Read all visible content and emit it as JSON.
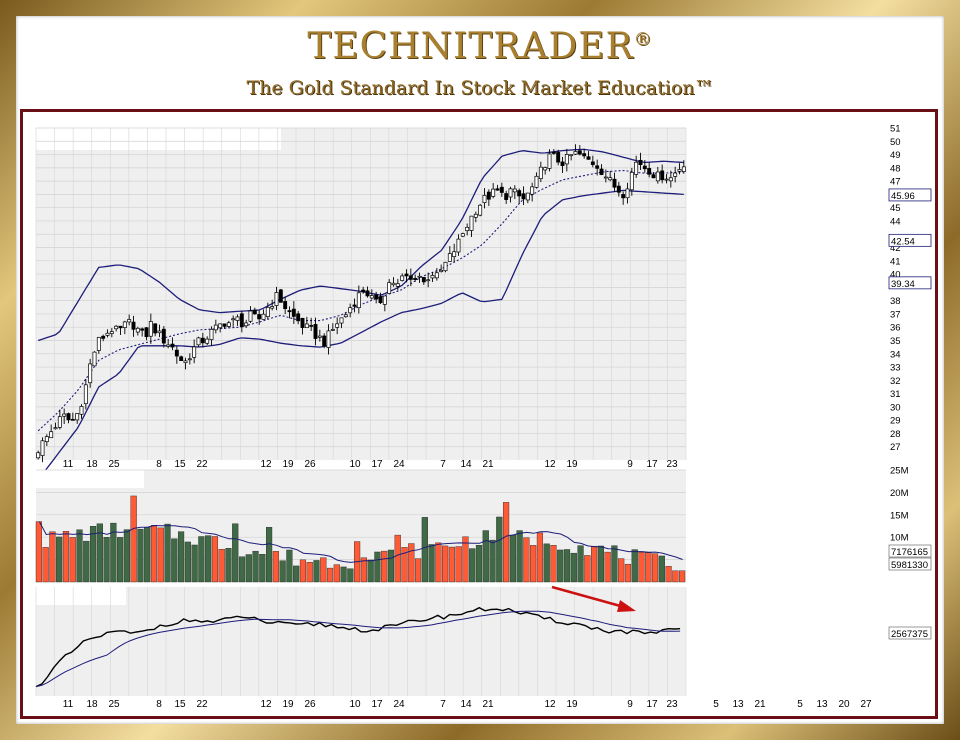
{
  "header": {
    "title": "TECHNITRADER",
    "registered_mark": "®",
    "tagline": "The Gold Standard In Stock Market Education™"
  },
  "colors": {
    "frame_gold": "#c9a85a",
    "chart_border": "#6b0f16",
    "bollinger": "#1d1d7a",
    "volume_up": "#3f6a45",
    "volume_down": "#ff5a36",
    "arrow": "#cc1111",
    "plot_bg": "#efefef"
  },
  "chart_data": [
    {
      "type": "candlestick",
      "overlays": [
        "bollinger_upper",
        "bollinger_lower",
        "moving_average_dotted"
      ],
      "y_ticks": [
        "51",
        "50",
        "49",
        "48",
        "47",
        "45",
        "44",
        "42",
        "41",
        "40",
        "38",
        "37",
        "36",
        "35",
        "34",
        "33",
        "32",
        "31",
        "30",
        "29",
        "28",
        "27"
      ],
      "price_labels": [
        "45.96",
        "42.54",
        "39.34"
      ],
      "ylim": [
        26,
        51
      ],
      "close_path": [
        26.8,
        27.5,
        28.2,
        28.9,
        29.3,
        28.8,
        29.6,
        31.2,
        33.6,
        34.9,
        35.4,
        35.9,
        35.6,
        36.1,
        36.4,
        35.8,
        35.2,
        36.3,
        35.5,
        35.0,
        34.6,
        33.8,
        33.3,
        34.1,
        34.8,
        35.1,
        35.6,
        36.0,
        36.4,
        36.3,
        36.6,
        36.2,
        36.9,
        36.5,
        37.2,
        37.8,
        38.4,
        37.6,
        36.9,
        36.5,
        36.0,
        35.7,
        35.3,
        34.9,
        35.6,
        36.4,
        36.8,
        37.6,
        38.3,
        38.9,
        38.2,
        37.6,
        38.6,
        39.6,
        39.1,
        39.9,
        39.5,
        40.1,
        39.3,
        40.2,
        39.7,
        40.6,
        41.4,
        42.2,
        43.3,
        44.2,
        45.1,
        45.6,
        46.0,
        46.2,
        45.8,
        46.3,
        45.9,
        45.6,
        46.3,
        47.1,
        48.3,
        48.9,
        48.6,
        48.4,
        48.9,
        49.1,
        48.7,
        48.5,
        48.2,
        47.6,
        46.9,
        46.4,
        46.1,
        47.4,
        48.6,
        48.1,
        47.8,
        47.3,
        47.5,
        47.2,
        47.8,
        48.4
      ],
      "upper_band_path": [
        35,
        35.5,
        38,
        40.5,
        40.7,
        40.4,
        39.4,
        38.1,
        37.3,
        37.1,
        37.2,
        37.3,
        38.1,
        38.8,
        39.1,
        38.9,
        38.7,
        38.4,
        39.1,
        40.6,
        41.8,
        44.1,
        47.2,
        48.9,
        49.3,
        49.1,
        49.3,
        49.4,
        49.2,
        48.8,
        48.4,
        48.5,
        48.4
      ],
      "lower_band_path": [
        24.5,
        26.5,
        28.5,
        31.5,
        32.5,
        34.6,
        34.6,
        34.6,
        34.5,
        34.7,
        35.2,
        35.1,
        34.8,
        34.6,
        34.5,
        34.8,
        35.6,
        36.4,
        37.1,
        37.4,
        37.8,
        38.6,
        37.9,
        38.1,
        41.5,
        44.4,
        45.6,
        45.9,
        46.1,
        46.3,
        46.2,
        46.1,
        46.0
      ],
      "moving_average_path": [
        28.2,
        29.6,
        31.3,
        33.5,
        34.3,
        34.7,
        35.1,
        35.5,
        35.8,
        35.9,
        36.0,
        36.4,
        36.9,
        36.5,
        36.5,
        36.9,
        37.7,
        38.3,
        38.8,
        39.8,
        40.4,
        41.2,
        42.2,
        43.8,
        45.6,
        46.4,
        47.1,
        47.4,
        47.7,
        47.8,
        47.6,
        47.6,
        47.7
      ],
      "x_ticks_top": [
        "11",
        "18",
        "25",
        "8",
        "15",
        "22",
        "12",
        "19",
        "26",
        "10",
        "17",
        "24",
        "7",
        "14",
        "21",
        "12",
        "19",
        "9",
        "17",
        "23"
      ]
    },
    {
      "type": "bar",
      "name": "volume",
      "y_ticks": [
        "25M",
        "20M",
        "15M",
        "10M"
      ],
      "value_labels": [
        "7176165",
        "5981330"
      ],
      "ylim": [
        0,
        25
      ]
    },
    {
      "type": "line",
      "name": "indicator",
      "value_labels": [
        "2567375"
      ],
      "arrow_direction": "down"
    }
  ],
  "x_axis_bottom": {
    "labels": [
      "11",
      "18",
      "25",
      "8",
      "15",
      "22",
      "12",
      "19",
      "26",
      "10",
      "17",
      "24",
      "7",
      "14",
      "21",
      "12",
      "19",
      "9",
      "17",
      "23",
      "5",
      "13",
      "21",
      "5",
      "13",
      "20",
      "27"
    ]
  }
}
